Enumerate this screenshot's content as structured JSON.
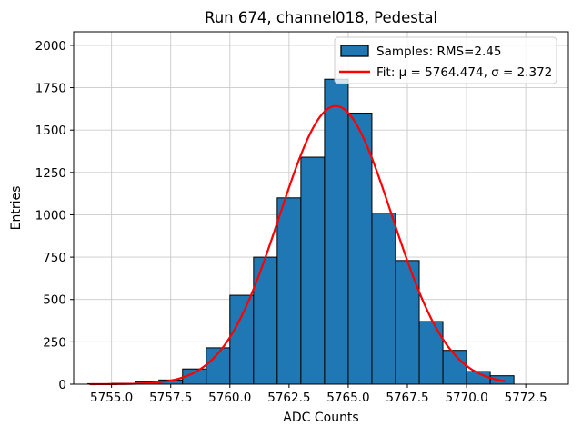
{
  "chart_data": {
    "type": "bar",
    "subtype": "histogram",
    "title": "Run 674, channel018, Pedestal",
    "xlabel": "ADC Counts",
    "ylabel": "Entries",
    "xlim": [
      5753.4,
      5774.3
    ],
    "ylim": [
      0,
      2080
    ],
    "x_ticks": [
      5755.0,
      5757.5,
      5760.0,
      5762.5,
      5765.0,
      5767.5,
      5770.0,
      5772.5
    ],
    "y_ticks": [
      0,
      250,
      500,
      750,
      1000,
      1250,
      1500,
      1750,
      2000
    ],
    "grid": true,
    "bin_start": 5754,
    "bin_width": 1,
    "values": [
      3,
      5,
      15,
      25,
      90,
      215,
      525,
      750,
      1100,
      1340,
      1800,
      1600,
      1010,
      730,
      370,
      200,
      75,
      50
    ],
    "fit": {
      "mu": 5764.474,
      "sigma": 2.372,
      "amplitude": 1642,
      "x_range": [
        5754.1,
        5771.6
      ]
    },
    "legend": {
      "position": "upper right",
      "entries": [
        {
          "label": "Samples: RMS=2.45",
          "type": "patch",
          "color": "#1f77b4"
        },
        {
          "label": "Fit: μ = 5764.474, σ = 2.372",
          "type": "line",
          "color": "#ff0000"
        }
      ]
    },
    "colors": {
      "bar_fill": "#1f77b4",
      "bar_edge": "#000000",
      "fit_line": "#ff0000",
      "grid": "#cacaca",
      "frame": "#000000",
      "legend_border": "#cccccc"
    }
  }
}
